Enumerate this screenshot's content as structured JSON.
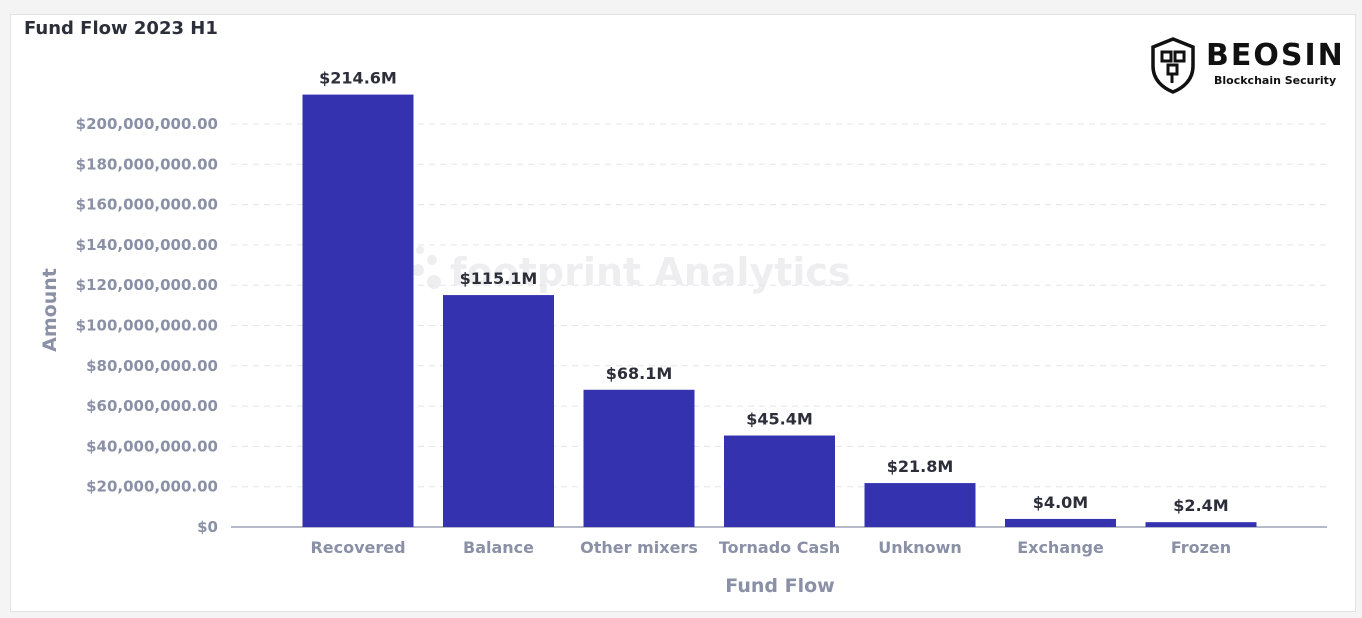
{
  "brand": {
    "name": "BEOSIN",
    "tagline": "Blockchain Security",
    "watermark": "footprint Analytics"
  },
  "chart_data": {
    "type": "bar",
    "title": "Fund Flow 2023 H1",
    "xlabel": "Fund Flow",
    "ylabel": "Amount",
    "categories": [
      "Recovered",
      "Balance",
      "Other mixers",
      "Tornado Cash",
      "Unknown",
      "Exchange",
      "Frozen"
    ],
    "values": [
      214600000,
      115100000,
      68100000,
      45400000,
      21800000,
      4000000,
      2400000
    ],
    "data_labels": [
      "$214.6M",
      "$115.1M",
      "$68.1M",
      "$45.4M",
      "$21.8M",
      "$4.0M",
      "$2.4M"
    ],
    "ylim": [
      0,
      200000000
    ],
    "yticks": [
      0,
      20000000,
      40000000,
      60000000,
      80000000,
      100000000,
      120000000,
      140000000,
      160000000,
      180000000,
      200000000
    ],
    "ytick_labels": [
      "$0",
      "$20,000,000.00",
      "$40,000,000.00",
      "$60,000,000.00",
      "$80,000,000.00",
      "$100,000,000.00",
      "$120,000,000.00",
      "$140,000,000.00",
      "$160,000,000.00",
      "$180,000,000.00",
      "$200,000,000.00"
    ],
    "bar_color": "#3532b0",
    "grid": true,
    "legend": "none"
  }
}
